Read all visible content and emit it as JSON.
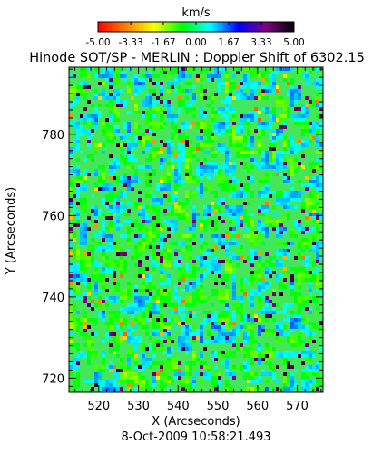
{
  "chart_data": {
    "type": "heatmap",
    "title": "Hinode SOT/SP - MERLIN : Doppler Shift of 6302.15",
    "xlabel": "X (Arcseconds)",
    "ylabel": "Y (Arcseconds)",
    "date": "8-Oct-2009 10:58:21.493",
    "x_ticks": [
      520,
      530,
      540,
      550,
      560,
      570
    ],
    "x_tick_labels": [
      "520",
      "530",
      "540",
      "550",
      "560",
      "570"
    ],
    "y_ticks": [
      720,
      740,
      760,
      780
    ],
    "y_tick_labels": [
      "720",
      "740",
      "760",
      "780"
    ],
    "xlim": [
      512.5,
      576.5
    ],
    "ylim": [
      716.5,
      796.5
    ],
    "colorbar": {
      "label": "km/s",
      "range": [
        -5.0,
        5.0
      ],
      "ticks": [
        -5.0,
        -3.33,
        -1.67,
        0.0,
        1.67,
        3.33,
        5.0
      ],
      "tick_labels": [
        "-5.00",
        "-3.33",
        "-1.67",
        "0.00",
        "1.67",
        "3.33",
        "5.00"
      ],
      "colors": [
        "#ff0000",
        "#ff8000",
        "#ffff00",
        "#00ff00",
        "#00ffff",
        "#0000ff",
        "#800080",
        "#000000"
      ]
    },
    "field_description": "dense granulation pattern, mostly near 0 km/s (green) with patches of cyan/blue and sparse yellow/red"
  }
}
